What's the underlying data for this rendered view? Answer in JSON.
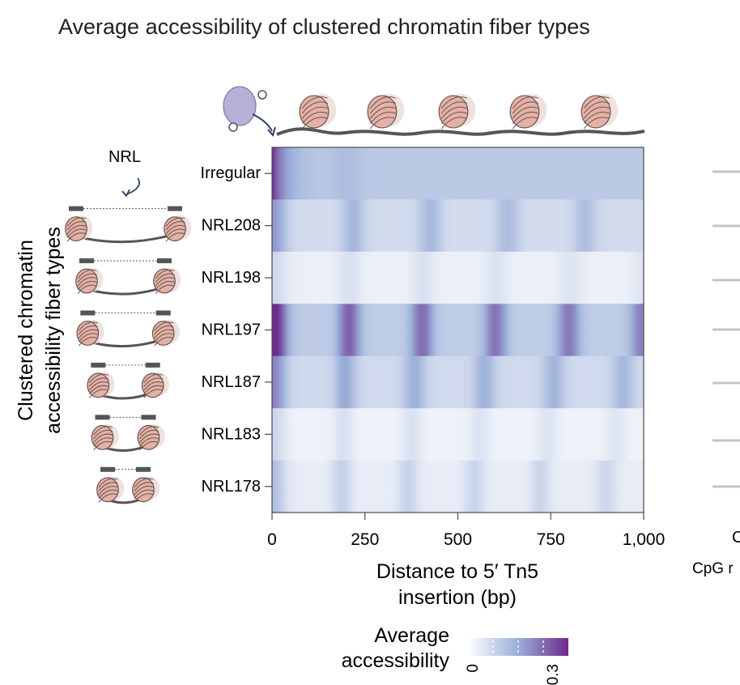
{
  "title": "Average accessibility of clustered chromatin fiber types",
  "chart_data": {
    "type": "heatmap",
    "title": "Average accessibility of clustered chromatin fiber types",
    "ylabel": [
      "Clustered chromatin",
      "accessibility fiber types"
    ],
    "xlabel": [
      "Distance to 5′ Tn5",
      "insertion (bp)"
    ],
    "xlim": [
      0,
      1000
    ],
    "x_ticks": [
      0,
      250,
      500,
      750,
      1000
    ],
    "x_tick_labels": [
      "0",
      "250",
      "500",
      "750",
      "1,000"
    ],
    "rows": [
      "Irregular",
      "NRL208",
      "NRL198",
      "NRL197",
      "NRL187",
      "NRL183",
      "NRL178"
    ],
    "nrl_bp": [
      null,
      208,
      198,
      197,
      187,
      183,
      178
    ],
    "base_accessibility": [
      0.1,
      0.065,
      0.03,
      0.095,
      0.07,
      0.025,
      0.035
    ],
    "peak_accessibility": [
      0.3,
      0.14,
      0.06,
      0.25,
      0.16,
      0.06,
      0.09
    ],
    "colorbar": {
      "label": [
        "Average",
        "accessibility"
      ],
      "min": 0,
      "max": 0.3,
      "tick_labels": [
        "0",
        "0.3"
      ],
      "colors": [
        "#ffffff",
        "#9aaed8",
        "#6e2a8c"
      ]
    },
    "nucleosome_label": "NRL",
    "right_partial": [
      "C",
      "CpG r"
    ]
  }
}
